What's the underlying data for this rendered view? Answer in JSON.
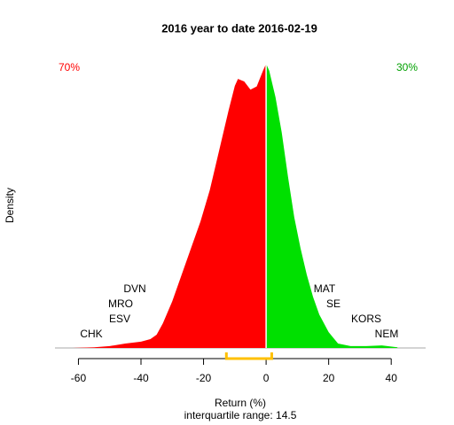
{
  "chart_data": {
    "type": "density",
    "title": "2016  year to date 2016-02-19",
    "xlabel": "Return (%)",
    "ylabel": "Density",
    "subtitle": "interquartile range: 14.5",
    "x": [
      -62,
      -55,
      -50,
      -45,
      -40,
      -37,
      -35,
      -33,
      -30,
      -27,
      -24,
      -21,
      -18,
      -15,
      -12,
      -10,
      -9,
      -7,
      -5,
      -3,
      -1,
      0,
      1,
      3,
      5,
      7,
      9,
      11,
      13,
      15,
      17,
      20,
      23,
      27,
      32,
      37,
      42
    ],
    "values": [
      0,
      0.0001,
      0.0003,
      0.0007,
      0.001,
      0.0014,
      0.0021,
      0.0039,
      0.0074,
      0.0116,
      0.0158,
      0.02,
      0.025,
      0.0313,
      0.0376,
      0.0415,
      0.0426,
      0.0422,
      0.0409,
      0.0414,
      0.0439,
      0.045,
      0.0439,
      0.0397,
      0.0341,
      0.0271,
      0.0207,
      0.0158,
      0.0116,
      0.0081,
      0.0053,
      0.0025,
      0.0007,
      0.0003,
      0.0003,
      0.0004,
      0.0001
    ],
    "negative_color": "#ff0000",
    "positive_color": "#00e000",
    "negative_share": "70%",
    "positive_share": "30%",
    "iqr_bracket": [
      -12.7,
      1.8
    ],
    "iqr_color": "#ffc000",
    "left_tickers": [
      "CHK",
      "ESV",
      "MRO",
      "DVN"
    ],
    "right_tickers": [
      "MAT",
      "SE",
      "KORS",
      "NEM"
    ],
    "xlim": [
      -67.5,
      51
    ],
    "ylim": [
      0,
      0.0464
    ],
    "xticks": [
      -60,
      -40,
      -20,
      0,
      20,
      40
    ]
  }
}
